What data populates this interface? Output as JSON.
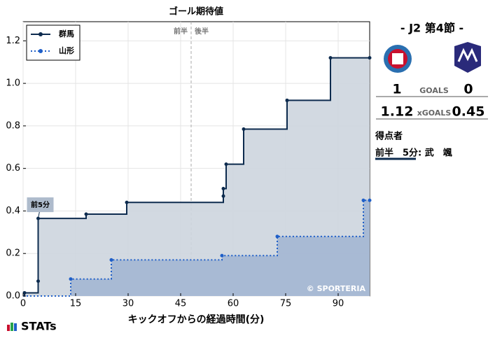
{
  "chart_data": {
    "type": "step",
    "title": "ゴール期待値",
    "x_label": "キックオフからの経過時間(分)",
    "xlim": [
      0,
      99
    ],
    "xticks": [
      0,
      15,
      30,
      45,
      60,
      75,
      90
    ],
    "ylim": [
      0,
      1.29
    ],
    "yticks": [
      {
        "value": 0,
        "label": "0.0"
      },
      {
        "value": 0.2,
        "label": "0.2"
      },
      {
        "value": 0.4,
        "label": "0.4"
      },
      {
        "value": 0.6,
        "label": "0.6"
      },
      {
        "value": 0.8,
        "label": "0.8"
      },
      {
        "value": 1,
        "label": "1.0"
      },
      {
        "value": 1.2,
        "label": "1.2"
      }
    ],
    "grid": true,
    "legend": "upper left",
    "series": [
      {
        "name": "群馬",
        "color": "#0d2b4e",
        "fill": "#cdd5de",
        "dash": false,
        "x": [
          0.4,
          4.3,
          4.3,
          18,
          29.6,
          57.2,
          57.2,
          58,
          63,
          75.4,
          87.8,
          99
        ],
        "values": [
          0.015,
          0.07,
          0.365,
          0.385,
          0.44,
          0.47,
          0.505,
          0.62,
          0.785,
          0.92,
          1.12,
          1.12
        ]
      },
      {
        "name": "山形",
        "color": "#1f5fc8",
        "fill": "#a3b6d3",
        "dash": true,
        "x": [
          13.6,
          25.2,
          56.8,
          72.6,
          97.2,
          99
        ],
        "values": [
          0.08,
          0.17,
          0.19,
          0.28,
          0.45,
          0.45
        ]
      }
    ],
    "half": {
      "x": 48,
      "labels": [
        "前半",
        "後半"
      ]
    },
    "goal_marker": {
      "label": "前5分",
      "x": 4.3,
      "y": 0.365
    },
    "credit": "© SPORTERIA"
  },
  "panel": {
    "title": "- J2 第4節 -",
    "home_goals": "1",
    "goals_label": "GOALS",
    "away_goals": "0",
    "home_xg": "1.12",
    "xg_label": "xGOALS",
    "away_xg": "0.45",
    "scorers_title": "得点者",
    "scorer": "前半　5分: 武　颯"
  },
  "footer": {
    "brand": "STATs"
  }
}
